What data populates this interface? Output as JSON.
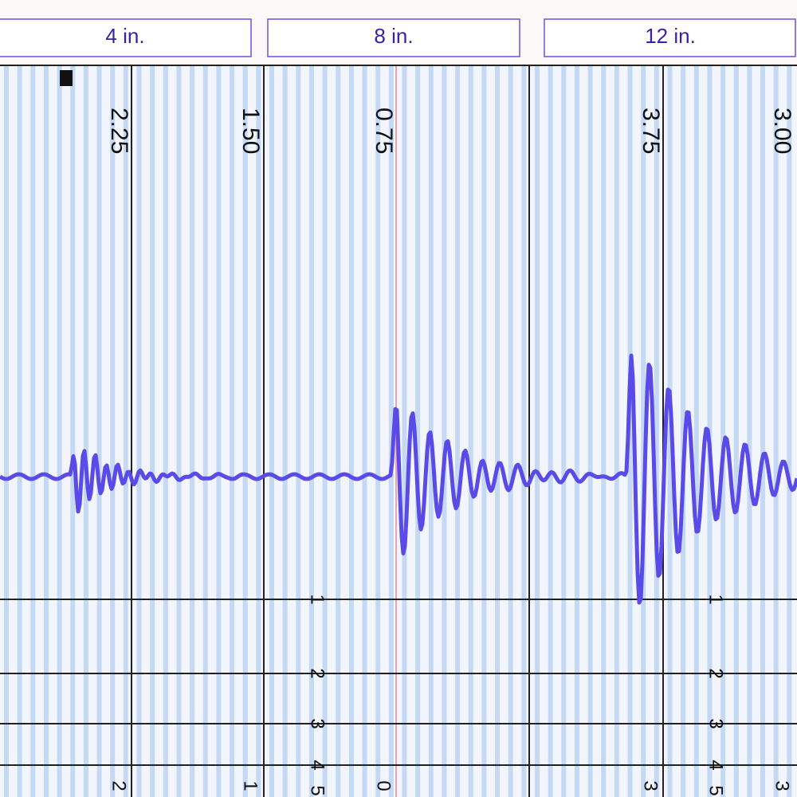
{
  "tabs": [
    "4 in.",
    "8 in.",
    "12 in."
  ],
  "scale_labels": [
    "2.25",
    "1.50",
    "0.75",
    "3.75",
    "3.00"
  ],
  "depth_marks": [
    [
      "1",
      "2",
      "3",
      "4",
      "5"
    ],
    [
      "1",
      "2",
      "3",
      "4",
      "5"
    ]
  ],
  "bottom_labels": [
    "2",
    "1",
    "0",
    "3",
    "3"
  ]
}
